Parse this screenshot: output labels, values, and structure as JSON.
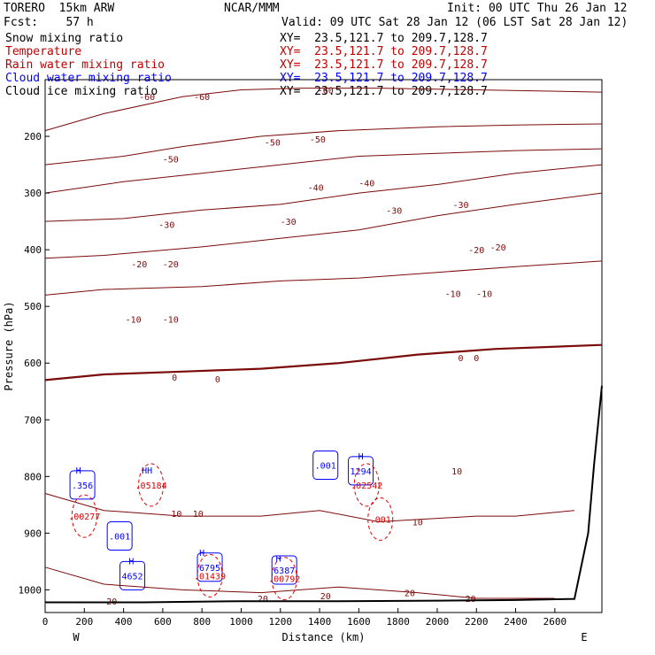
{
  "header": {
    "model": "TORERO  15km ARW",
    "center": "NCAR/MMM",
    "init": "Init: 00 UTC Thu 26 Jan 12",
    "fcst": "Fcst:    57 h",
    "valid": "Valid: 09 UTC Sat 28 Jan 12 (06 LST Sat 28 Jan 12)"
  },
  "legend": [
    {
      "field": "Snow mixing ratio",
      "xy": "XY=  23.5,121.7 to 209.7,128.7",
      "color": "#000000"
    },
    {
      "field": "Temperature",
      "xy": "XY=  23.5,121.7 to 209.7,128.7",
      "color": "#c00000"
    },
    {
      "field": "Rain water mixing ratio",
      "xy": "XY=  23.5,121.7 to 209.7,128.7",
      "color": "#c00000"
    },
    {
      "field": "Cloud water mixing ratio",
      "xy": "XY=  23.5,121.7 to 209.7,128.7",
      "color": "#0000ff"
    },
    {
      "field": "Cloud ice mixing ratio",
      "xy": "XY=  23.5,121.7 to 209.7,128.7",
      "color": "#000000"
    }
  ],
  "colors": {
    "temperature": "#7b0a0a",
    "rain": "#e00000",
    "cloud_water": "#0000ff",
    "terrain": "#000000"
  },
  "chart_data": {
    "type": "contour",
    "xlabel": "Distance (km)",
    "ylabel": "Pressure (hPa)",
    "xlim": [
      0,
      2840
    ],
    "ylim": [
      1040,
      100
    ],
    "x_ticks": [
      0,
      200,
      400,
      600,
      800,
      1000,
      1200,
      1400,
      1600,
      1800,
      2000,
      2200,
      2400,
      2600
    ],
    "y_ticks": [
      200,
      300,
      400,
      500,
      600,
      700,
      800,
      900,
      1000
    ],
    "x_end_labels": {
      "left": "W",
      "right": "E"
    },
    "temperature_isotherms": [
      {
        "label": "-60",
        "points": [
          [
            0,
            190
          ],
          [
            300,
            160
          ],
          [
            700,
            130
          ],
          [
            1000,
            118
          ],
          [
            1300,
            115
          ],
          [
            1700,
            115
          ],
          [
            2200,
            118
          ],
          [
            2840,
            122
          ]
        ],
        "labels_at": [
          [
            520,
            130
          ],
          [
            800,
            130
          ],
          [
            1430,
            118
          ]
        ]
      },
      {
        "label": "-50",
        "points": [
          [
            0,
            250
          ],
          [
            400,
            235
          ],
          [
            700,
            218
          ],
          [
            1100,
            200
          ],
          [
            1500,
            190
          ],
          [
            2000,
            183
          ],
          [
            2400,
            180
          ],
          [
            2840,
            178
          ]
        ],
        "labels_at": [
          [
            640,
            240
          ],
          [
            1160,
            210
          ],
          [
            1390,
            205
          ]
        ]
      },
      {
        "label": "-40",
        "points": [
          [
            0,
            300
          ],
          [
            400,
            280
          ],
          [
            800,
            265
          ],
          [
            1200,
            250
          ],
          [
            1600,
            235
          ],
          [
            2000,
            230
          ],
          [
            2400,
            225
          ],
          [
            2840,
            222
          ]
        ],
        "labels_at": [
          [
            1380,
            290
          ],
          [
            1640,
            282
          ]
        ]
      },
      {
        "label": "-30",
        "points": [
          [
            0,
            350
          ],
          [
            400,
            345
          ],
          [
            800,
            330
          ],
          [
            1200,
            320
          ],
          [
            1600,
            300
          ],
          [
            2000,
            285
          ],
          [
            2400,
            265
          ],
          [
            2840,
            250
          ]
        ],
        "labels_at": [
          [
            620,
            355
          ],
          [
            1240,
            350
          ],
          [
            1780,
            330
          ],
          [
            2120,
            320
          ]
        ]
      },
      {
        "label": "-20",
        "points": [
          [
            0,
            415
          ],
          [
            300,
            410
          ],
          [
            800,
            395
          ],
          [
            1200,
            380
          ],
          [
            1600,
            365
          ],
          [
            2000,
            340
          ],
          [
            2400,
            320
          ],
          [
            2840,
            300
          ]
        ],
        "labels_at": [
          [
            480,
            425
          ],
          [
            640,
            425
          ],
          [
            2200,
            400
          ],
          [
            2310,
            395
          ]
        ]
      },
      {
        "label": "-10",
        "points": [
          [
            0,
            480
          ],
          [
            300,
            470
          ],
          [
            800,
            465
          ],
          [
            1200,
            455
          ],
          [
            1600,
            450
          ],
          [
            2000,
            440
          ],
          [
            2400,
            430
          ],
          [
            2840,
            420
          ]
        ],
        "labels_at": [
          [
            2080,
            477
          ],
          [
            2240,
            477
          ],
          [
            450,
            522
          ],
          [
            640,
            522
          ]
        ]
      },
      {
        "label": "0",
        "points": [
          [
            0,
            630
          ],
          [
            300,
            620
          ],
          [
            700,
            615
          ],
          [
            1100,
            610
          ],
          [
            1500,
            600
          ],
          [
            1900,
            585
          ],
          [
            2300,
            575
          ],
          [
            2840,
            568
          ]
        ],
        "labels_at": [
          [
            660,
            625
          ],
          [
            880,
            628
          ],
          [
            2120,
            590
          ],
          [
            2200,
            590
          ]
        ]
      },
      {
        "label": "10",
        "points": [
          [
            0,
            830
          ],
          [
            300,
            860
          ],
          [
            700,
            870
          ],
          [
            1100,
            870
          ],
          [
            1400,
            860
          ],
          [
            1700,
            880
          ],
          [
            2200,
            870
          ],
          [
            2400,
            870
          ],
          [
            2700,
            860
          ]
        ],
        "labels_at": [
          [
            670,
            865
          ],
          [
            780,
            865
          ],
          [
            1900,
            880
          ],
          [
            2100,
            790
          ]
        ]
      },
      {
        "label": "20",
        "points": [
          [
            0,
            960
          ],
          [
            300,
            990
          ],
          [
            700,
            1000
          ],
          [
            1100,
            1005
          ],
          [
            1500,
            995
          ],
          [
            1900,
            1005
          ],
          [
            2200,
            1015
          ],
          [
            2600,
            1015
          ]
        ],
        "labels_at": [
          [
            340,
            1020
          ],
          [
            1110,
            1015
          ],
          [
            1430,
            1010
          ],
          [
            1860,
            1005
          ],
          [
            2170,
            1015
          ]
        ]
      }
    ],
    "cloud_water": [
      {
        "label": ".356",
        "x": 190,
        "p": 815
      },
      {
        "label": ".001",
        "x": 380,
        "p": 905
      },
      {
        "label": "4652",
        "x": 445,
        "p": 975
      },
      {
        "label": "6795",
        "x": 840,
        "p": 960
      },
      {
        "label": "6387",
        "x": 1220,
        "p": 965
      },
      {
        "label": ".001",
        "x": 1430,
        "p": 780
      },
      {
        "label": "1294",
        "x": 1610,
        "p": 790
      }
    ],
    "rain_water": [
      {
        "label": ".00277",
        "x": 200,
        "p": 870
      },
      {
        "label": ".05184",
        "x": 540,
        "p": 815
      },
      {
        "label": ".01439",
        "x": 840,
        "p": 975
      },
      {
        "label": ".00792",
        "x": 1220,
        "p": 980
      },
      {
        "label": ".02542",
        "x": 1640,
        "p": 815
      },
      {
        "label": ".001",
        "x": 1710,
        "p": 875
      }
    ],
    "high_markers": [
      {
        "label": "H",
        "x": 170,
        "p": 795
      },
      {
        "label": "HH",
        "x": 520,
        "p": 795
      },
      {
        "label": "H",
        "x": 800,
        "p": 940
      },
      {
        "label": "H",
        "x": 440,
        "p": 955
      },
      {
        "label": "H",
        "x": 1190,
        "p": 950
      },
      {
        "label": "H",
        "x": 1610,
        "p": 770
      }
    ],
    "terrain": {
      "points": [
        [
          0,
          1022
        ],
        [
          500,
          1022
        ],
        [
          1000,
          1020
        ],
        [
          1500,
          1020
        ],
        [
          2000,
          1019
        ],
        [
          2400,
          1018
        ],
        [
          2700,
          1016
        ],
        [
          2770,
          900
        ],
        [
          2800,
          780
        ],
        [
          2840,
          640
        ]
      ]
    }
  }
}
